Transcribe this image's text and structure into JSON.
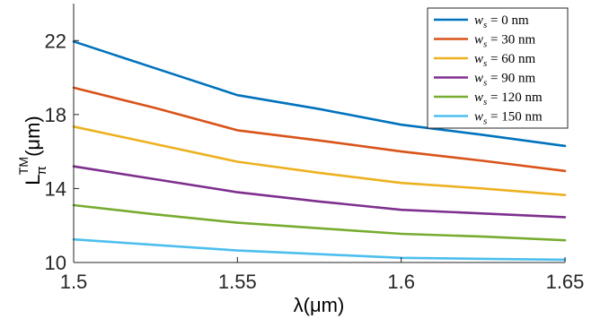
{
  "chart_data": {
    "type": "line",
    "xlabel": "λ(μm)",
    "ylabel": {
      "base": "L",
      "subscript": "π",
      "superscript": "TM",
      "unit": "(μm)"
    },
    "xlim": [
      1.5,
      1.65
    ],
    "ylim": [
      10,
      24
    ],
    "xticks": [
      1.5,
      1.55,
      1.6,
      1.65
    ],
    "xtick_labels": [
      "1.5",
      "1.55",
      "1.6",
      "1.65"
    ],
    "yticks": [
      10,
      14,
      18,
      22
    ],
    "ytick_labels": [
      "10",
      "14",
      "18",
      "22"
    ],
    "grid": false,
    "legend_position": "top-right",
    "x": [
      1.5,
      1.525,
      1.55,
      1.575,
      1.6,
      1.625,
      1.65
    ],
    "series": [
      {
        "name": "w_s = 0 nm",
        "var": "w",
        "sub": "s",
        "eq": "= 0 nm",
        "color": "#0072BD",
        "values": [
          21.95,
          20.5,
          19.05,
          18.3,
          17.45,
          16.9,
          16.3
        ]
      },
      {
        "name": "w_s = 30 nm",
        "var": "w",
        "sub": "s",
        "eq": "= 30 nm",
        "color": "#D95319",
        "values": [
          19.45,
          18.35,
          17.15,
          16.6,
          16.0,
          15.5,
          14.95
        ]
      },
      {
        "name": "w_s = 60 nm",
        "var": "w",
        "sub": "s",
        "eq": "= 60 nm",
        "color": "#EDB120",
        "values": [
          17.35,
          16.4,
          15.45,
          14.85,
          14.3,
          14.0,
          13.65
        ]
      },
      {
        "name": "w_s = 90 nm",
        "var": "w",
        "sub": "s",
        "eq": "= 90 nm",
        "color": "#7E2F8E",
        "values": [
          15.2,
          14.5,
          13.8,
          13.3,
          12.85,
          12.65,
          12.45
        ]
      },
      {
        "name": "w_s = 120 nm",
        "var": "w",
        "sub": "s",
        "eq": "= 120 nm",
        "color": "#77AC30",
        "values": [
          13.1,
          12.6,
          12.15,
          11.85,
          11.55,
          11.4,
          11.2
        ]
      },
      {
        "name": "w_s = 150 nm",
        "var": "w",
        "sub": "s",
        "eq": "= 150 nm",
        "color": "#4DBEEE",
        "values": [
          11.25,
          10.95,
          10.65,
          10.45,
          10.25,
          10.2,
          10.15
        ]
      }
    ]
  }
}
